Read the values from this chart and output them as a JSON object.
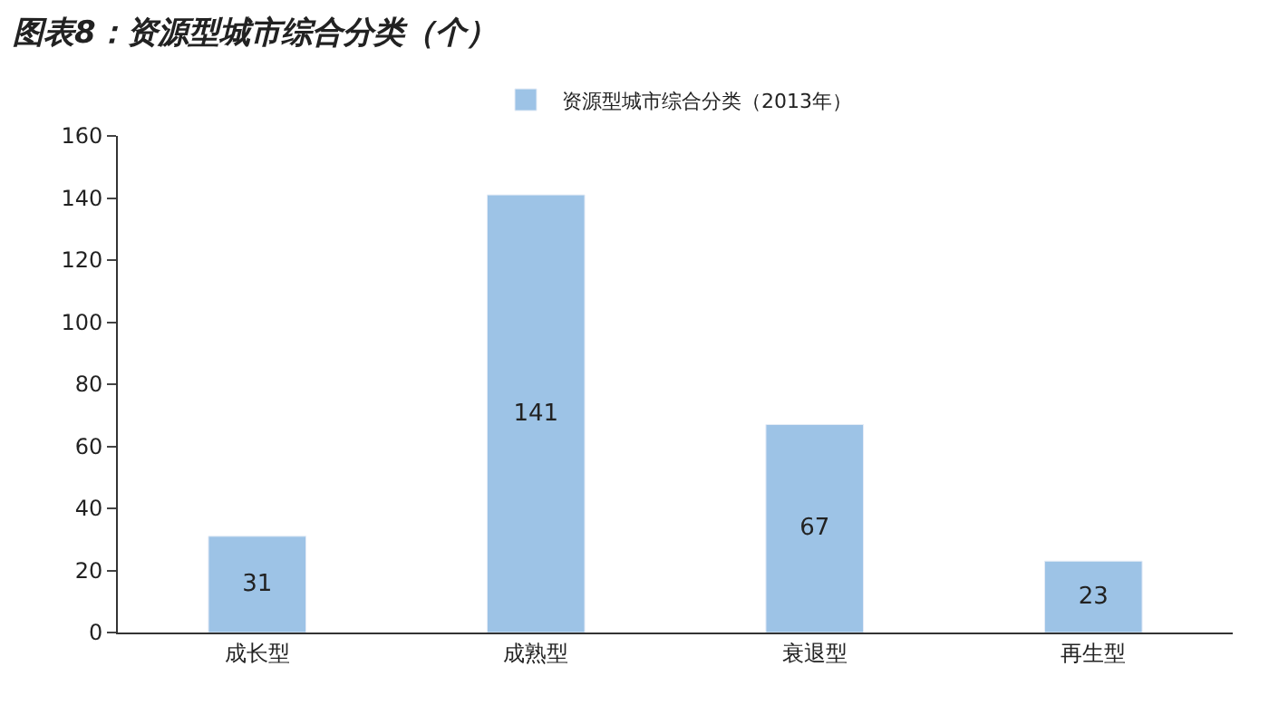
{
  "chart_data": {
    "type": "bar",
    "title": "图表8：资源型城市综合分类（个）",
    "categories": [
      "成长型",
      "成熟型",
      "衰退型",
      "再生型"
    ],
    "series": [
      {
        "name": "资源型城市综合分类（2013年）",
        "color": "#9dc3e6",
        "values": [
          31,
          141,
          67,
          23
        ]
      }
    ],
    "ylim": [
      0,
      160
    ],
    "yticks": [
      0,
      20,
      40,
      60,
      80,
      100,
      120,
      140,
      160
    ],
    "data_labels": true,
    "legend": "top"
  }
}
